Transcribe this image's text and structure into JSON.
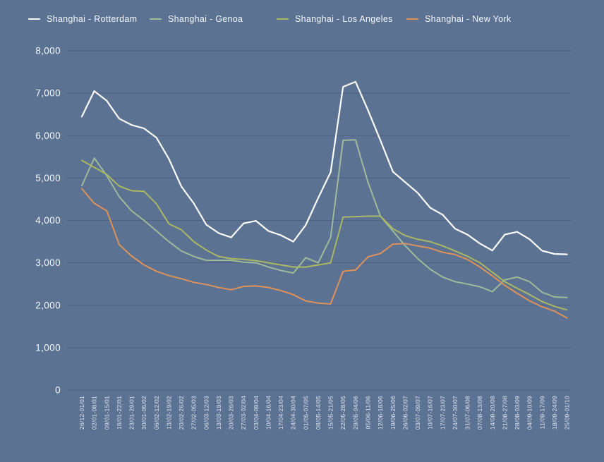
{
  "chart_data": {
    "type": "line",
    "title": "",
    "xlabel": "",
    "ylabel": "",
    "ylim": [
      0,
      8000
    ],
    "grid": true,
    "legend_position": "top",
    "background_color": "#5c7293",
    "grid_color": "#4e6080",
    "text_color": "#f4f8fc",
    "y_ticks": [
      {
        "label": "8,000",
        "value": 8000
      },
      {
        "label": "7,000",
        "value": 7000
      },
      {
        "label": "6,000",
        "value": 6000
      },
      {
        "label": "5,000",
        "value": 5000
      },
      {
        "label": "4,000",
        "value": 4000
      },
      {
        "label": "3,000",
        "value": 3000
      },
      {
        "label": "2,000",
        "value": 2000
      },
      {
        "label": "1,000",
        "value": 1000
      },
      {
        "label": "0",
        "value": 0
      }
    ],
    "categories": [
      "26/12-01/01",
      "02/01-08/01",
      "09/01-15/01",
      "16/01-22/01",
      "23/01-29/01",
      "30/01-05/02",
      "06/02-12/02",
      "13/02-19/02",
      "20/02-26/02",
      "27/02-05/03",
      "06/03-12/03",
      "13/03-19/03",
      "20/03-26/03",
      "27/03-02/04",
      "03/04-09/04",
      "10/04-16/04",
      "17/04-23/04",
      "24/04-30/04",
      "01/05-07/05",
      "08/05-14/05",
      "15/05-21/05",
      "22/05-28/05",
      "29/05-04/06",
      "05/06-11/06",
      "12/06-18/06",
      "19/06-25/06",
      "26/06-02/07",
      "03/07-09/07",
      "10/07-16/07",
      "17/07-23/07",
      "24/07-30/07",
      "31/07-06/08",
      "07/08-13/08",
      "14/08-20/08",
      "21/08-27/08",
      "28/08-03/09",
      "04/09-10/09",
      "11/09-17/09",
      "18/09-24/09",
      "25/09-01/10"
    ],
    "series": [
      {
        "name": "Shanghai - Rotterdam",
        "color": "#fdfdfe",
        "stroke_width": 2.2,
        "values": [
          6450,
          7050,
          6820,
          6400,
          6250,
          6170,
          5950,
          5450,
          4800,
          4400,
          3900,
          3700,
          3600,
          3930,
          3990,
          3750,
          3650,
          3500,
          3890,
          4530,
          5140,
          7150,
          7270,
          6600,
          5890,
          5150,
          4900,
          4650,
          4300,
          4135,
          3805,
          3665,
          3455,
          3290,
          3665,
          3730,
          3555,
          3285,
          3210,
          3200
        ]
      },
      {
        "name": "Shanghai - Genoa",
        "color": "#9dbb9b",
        "stroke_width": 2,
        "values": [
          4820,
          5470,
          5055,
          4560,
          4225,
          4000,
          3750,
          3500,
          3280,
          3150,
          3060,
          3060,
          3060,
          3015,
          3000,
          2900,
          2820,
          2760,
          3120,
          3000,
          3600,
          5890,
          5900,
          4900,
          4100,
          3750,
          3400,
          3100,
          2850,
          2665,
          2555,
          2500,
          2435,
          2320,
          2600,
          2665,
          2555,
          2305,
          2195,
          2180
        ]
      },
      {
        "name": "Shanghai - Los Angeles",
        "color": "#aab863",
        "stroke_width": 2,
        "values": [
          5415,
          5250,
          5085,
          4810,
          4700,
          4685,
          4390,
          3920,
          3780,
          3500,
          3300,
          3150,
          3100,
          3080,
          3050,
          3000,
          2950,
          2900,
          2900,
          2950,
          3000,
          4080,
          4090,
          4100,
          4100,
          3805,
          3640,
          3555,
          3500,
          3400,
          3280,
          3155,
          3000,
          2780,
          2555,
          2400,
          2250,
          2085,
          1975,
          1890
        ]
      },
      {
        "name": "Shanghai - New York",
        "color": "#dd9259",
        "stroke_width": 2,
        "values": [
          4750,
          4400,
          4230,
          3430,
          3160,
          2950,
          2800,
          2700,
          2625,
          2540,
          2490,
          2420,
          2365,
          2445,
          2455,
          2420,
          2345,
          2250,
          2100,
          2050,
          2030,
          2800,
          2830,
          3140,
          3220,
          3440,
          3455,
          3400,
          3345,
          3250,
          3195,
          3080,
          2900,
          2695,
          2470,
          2280,
          2100,
          1965,
          1860,
          1700
        ]
      }
    ],
    "legend_x_positions": [
      40,
      212,
      392,
      576
    ]
  }
}
